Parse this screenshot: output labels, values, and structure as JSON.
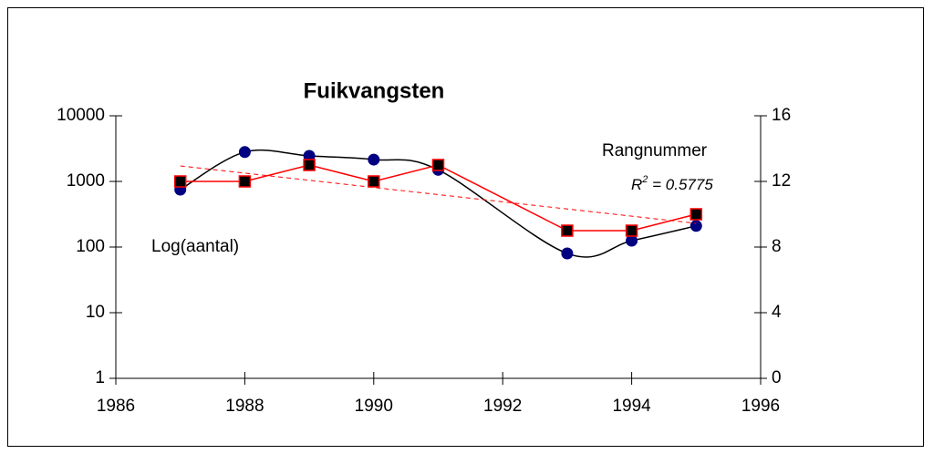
{
  "chart_data": {
    "type": "line",
    "title": "Fuikvangsten",
    "x": [
      1987,
      1988,
      1989,
      1990,
      1991,
      1993,
      1994,
      1995
    ],
    "xlim": [
      1986,
      1996
    ],
    "xticks": [
      1986,
      1988,
      1990,
      1992,
      1994,
      1996
    ],
    "ylim": [
      1,
      10000
    ],
    "yscale": "log",
    "yticks": [
      1,
      10,
      100,
      1000,
      10000
    ],
    "y2lim": [
      0,
      16
    ],
    "y2ticks": [
      0,
      4,
      8,
      12,
      16
    ],
    "grid": false,
    "series": [
      {
        "name": "Log(aantal)",
        "color": "#000000",
        "marker_color": "#000080",
        "marker": "circle",
        "smooth": true,
        "values": [
          750,
          2800,
          2450,
          2150,
          1500,
          80,
          125,
          210
        ]
      },
      {
        "name": "Rangnummer",
        "color": "#ff0000",
        "marker_color": "#000000",
        "marker": "square",
        "axis": "y2",
        "trendline": "linear",
        "values": [
          12,
          12,
          13,
          12,
          13,
          9,
          9,
          10
        ]
      }
    ],
    "trendline_label": [
      "R",
      "2",
      " = 0.5775"
    ]
  }
}
